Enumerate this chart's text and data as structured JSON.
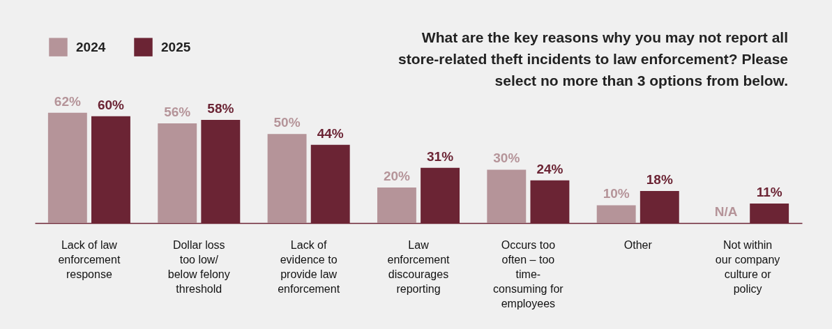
{
  "chart_data": {
    "type": "bar",
    "title": "What are the key reasons why you may not report all store-related theft incidents to law enforcement? Please select no more than 3 options from below.",
    "categories": [
      "Lack of law enforcement response",
      "Dollar loss too low/ below felony threshold",
      "Lack of evidence to provide law enforcement",
      "Law enforcement discourages reporting",
      "Occurs too often – too time-consuming for employees",
      "Other",
      "Not within our company culture or policy"
    ],
    "series": [
      {
        "name": "2024",
        "color": "#b59499",
        "values": [
          62,
          56,
          50,
          20,
          30,
          10,
          null
        ],
        "value_labels": [
          "62%",
          "56%",
          "50%",
          "20%",
          "30%",
          "10%",
          "N/A"
        ]
      },
      {
        "name": "2025",
        "color": "#6b2434",
        "values": [
          60,
          58,
          44,
          31,
          24,
          18,
          11
        ],
        "value_labels": [
          "60%",
          "58%",
          "44%",
          "31%",
          "24%",
          "18%",
          "11%"
        ]
      }
    ],
    "legend": "top left"
  }
}
